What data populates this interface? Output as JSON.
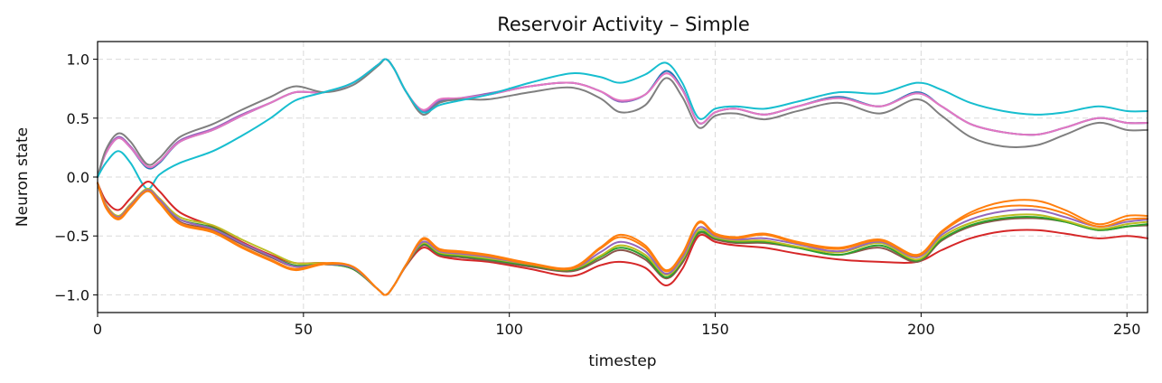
{
  "chart_data": {
    "type": "line",
    "title": "Reservoir Activity – Simple",
    "xlabel": "timestep",
    "ylabel": "Neuron state",
    "xlim": [
      0,
      255
    ],
    "ylim": [
      -1.15,
      1.15
    ],
    "x_ticks": [
      0,
      50,
      100,
      150,
      200,
      250
    ],
    "y_ticks": [
      -1.0,
      -0.5,
      0.0,
      0.5,
      1.0
    ],
    "x_tick_labels": [
      "0",
      "50",
      "100",
      "150",
      "200",
      "250"
    ],
    "y_tick_labels": [
      "−1.0",
      "−0.5",
      "0.0",
      "0.5",
      "1.0"
    ],
    "grid": true,
    "legend": "none",
    "x": [
      0,
      2,
      5,
      8,
      12,
      15,
      20,
      28,
      35,
      42,
      48,
      55,
      62,
      68,
      70,
      72,
      75,
      79,
      83,
      88,
      95,
      105,
      115,
      122,
      127,
      133,
      138,
      142,
      146,
      150,
      155,
      162,
      170,
      180,
      190,
      199,
      205,
      212,
      220,
      228,
      235,
      243,
      250,
      255
    ],
    "series": [
      {
        "color": "#1f77b4",
        "values": [
          0.0,
          0.2,
          0.33,
          0.25,
          0.08,
          0.12,
          0.3,
          0.4,
          0.52,
          0.63,
          0.72,
          0.72,
          0.8,
          0.95,
          1.0,
          0.92,
          0.72,
          0.55,
          0.64,
          0.66,
          0.7,
          0.77,
          0.8,
          0.73,
          0.64,
          0.7,
          0.9,
          0.75,
          0.46,
          0.55,
          0.58,
          0.53,
          0.6,
          0.68,
          0.6,
          0.72,
          0.6,
          0.45,
          0.38,
          0.36,
          0.42,
          0.5,
          0.46,
          0.46
        ]
      },
      {
        "color": "#9467bd",
        "values": [
          0.0,
          0.21,
          0.34,
          0.26,
          0.09,
          0.13,
          0.31,
          0.41,
          0.53,
          0.63,
          0.72,
          0.72,
          0.8,
          0.95,
          1.0,
          0.92,
          0.72,
          0.56,
          0.65,
          0.67,
          0.71,
          0.77,
          0.8,
          0.73,
          0.64,
          0.7,
          0.88,
          0.74,
          0.46,
          0.55,
          0.58,
          0.53,
          0.6,
          0.67,
          0.6,
          0.71,
          0.6,
          0.45,
          0.38,
          0.36,
          0.42,
          0.5,
          0.46,
          0.46
        ]
      },
      {
        "color": "#e377c2",
        "values": [
          0.0,
          0.2,
          0.33,
          0.25,
          0.09,
          0.13,
          0.3,
          0.4,
          0.52,
          0.63,
          0.72,
          0.72,
          0.8,
          0.95,
          1.0,
          0.92,
          0.72,
          0.57,
          0.66,
          0.67,
          0.7,
          0.77,
          0.8,
          0.73,
          0.65,
          0.7,
          0.88,
          0.74,
          0.46,
          0.55,
          0.58,
          0.53,
          0.6,
          0.67,
          0.6,
          0.71,
          0.6,
          0.45,
          0.38,
          0.36,
          0.42,
          0.5,
          0.46,
          0.46
        ]
      },
      {
        "color": "#7f7f7f",
        "values": [
          0.0,
          0.23,
          0.37,
          0.3,
          0.11,
          0.16,
          0.34,
          0.45,
          0.57,
          0.68,
          0.77,
          0.72,
          0.78,
          0.94,
          1.0,
          0.92,
          0.72,
          0.53,
          0.63,
          0.66,
          0.66,
          0.72,
          0.76,
          0.67,
          0.55,
          0.61,
          0.84,
          0.68,
          0.42,
          0.52,
          0.54,
          0.49,
          0.56,
          0.63,
          0.54,
          0.66,
          0.52,
          0.34,
          0.26,
          0.27,
          0.36,
          0.46,
          0.4,
          0.4
        ]
      },
      {
        "color": "#17becf",
        "values": [
          0.0,
          0.12,
          0.22,
          0.12,
          -0.1,
          0.02,
          0.12,
          0.22,
          0.35,
          0.5,
          0.65,
          0.72,
          0.8,
          0.95,
          1.0,
          0.92,
          0.72,
          0.55,
          0.61,
          0.65,
          0.7,
          0.8,
          0.88,
          0.85,
          0.8,
          0.87,
          0.97,
          0.8,
          0.5,
          0.58,
          0.6,
          0.58,
          0.64,
          0.72,
          0.71,
          0.8,
          0.74,
          0.63,
          0.56,
          0.53,
          0.55,
          0.6,
          0.56,
          0.56
        ]
      },
      {
        "color": "#d62728",
        "values": [
          -0.05,
          -0.2,
          -0.28,
          -0.18,
          -0.04,
          -0.12,
          -0.3,
          -0.42,
          -0.55,
          -0.66,
          -0.73,
          -0.73,
          -0.78,
          -0.95,
          -1.0,
          -0.92,
          -0.75,
          -0.6,
          -0.67,
          -0.7,
          -0.72,
          -0.78,
          -0.84,
          -0.75,
          -0.72,
          -0.77,
          -0.92,
          -0.78,
          -0.5,
          -0.55,
          -0.58,
          -0.6,
          -0.65,
          -0.7,
          -0.72,
          -0.72,
          -0.62,
          -0.52,
          -0.46,
          -0.45,
          -0.48,
          -0.52,
          -0.5,
          -0.52
        ]
      },
      {
        "color": "#8c564b",
        "values": [
          -0.05,
          -0.25,
          -0.35,
          -0.25,
          -0.12,
          -0.2,
          -0.38,
          -0.45,
          -0.57,
          -0.68,
          -0.76,
          -0.74,
          -0.78,
          -0.95,
          -1.0,
          -0.92,
          -0.75,
          -0.58,
          -0.66,
          -0.68,
          -0.71,
          -0.76,
          -0.8,
          -0.7,
          -0.62,
          -0.7,
          -0.86,
          -0.73,
          -0.48,
          -0.53,
          -0.56,
          -0.56,
          -0.6,
          -0.66,
          -0.6,
          -0.72,
          -0.54,
          -0.42,
          -0.36,
          -0.35,
          -0.38,
          -0.45,
          -0.42,
          -0.41
        ]
      },
      {
        "color": "#2ca02c",
        "values": [
          -0.05,
          -0.24,
          -0.34,
          -0.24,
          -0.11,
          -0.2,
          -0.36,
          -0.43,
          -0.56,
          -0.67,
          -0.75,
          -0.74,
          -0.78,
          -0.95,
          -1.0,
          -0.92,
          -0.74,
          -0.57,
          -0.65,
          -0.67,
          -0.7,
          -0.75,
          -0.79,
          -0.68,
          -0.6,
          -0.68,
          -0.85,
          -0.71,
          -0.47,
          -0.52,
          -0.55,
          -0.55,
          -0.6,
          -0.66,
          -0.58,
          -0.71,
          -0.53,
          -0.41,
          -0.35,
          -0.34,
          -0.38,
          -0.45,
          -0.42,
          -0.4
        ]
      },
      {
        "color": "#bcbd22",
        "values": [
          -0.05,
          -0.23,
          -0.33,
          -0.23,
          -0.1,
          -0.18,
          -0.34,
          -0.41,
          -0.53,
          -0.64,
          -0.73,
          -0.73,
          -0.77,
          -0.95,
          -1.0,
          -0.92,
          -0.74,
          -0.56,
          -0.64,
          -0.66,
          -0.69,
          -0.74,
          -0.78,
          -0.67,
          -0.58,
          -0.66,
          -0.83,
          -0.7,
          -0.45,
          -0.51,
          -0.54,
          -0.54,
          -0.59,
          -0.64,
          -0.56,
          -0.7,
          -0.51,
          -0.39,
          -0.33,
          -0.32,
          -0.37,
          -0.44,
          -0.4,
          -0.38
        ]
      },
      {
        "color": "#9467bd",
        "values": [
          -0.05,
          -0.24,
          -0.34,
          -0.24,
          -0.11,
          -0.19,
          -0.36,
          -0.44,
          -0.56,
          -0.67,
          -0.76,
          -0.74,
          -0.77,
          -0.95,
          -1.0,
          -0.92,
          -0.74,
          -0.55,
          -0.63,
          -0.65,
          -0.68,
          -0.74,
          -0.78,
          -0.64,
          -0.55,
          -0.63,
          -0.82,
          -0.68,
          -0.43,
          -0.5,
          -0.53,
          -0.52,
          -0.57,
          -0.63,
          -0.55,
          -0.68,
          -0.49,
          -0.36,
          -0.29,
          -0.28,
          -0.34,
          -0.42,
          -0.38,
          -0.36
        ]
      },
      {
        "color": "#ff7f0e",
        "values": [
          -0.05,
          -0.26,
          -0.36,
          -0.26,
          -0.12,
          -0.22,
          -0.4,
          -0.47,
          -0.6,
          -0.71,
          -0.79,
          -0.74,
          -0.76,
          -0.95,
          -1.0,
          -0.92,
          -0.74,
          -0.52,
          -0.61,
          -0.63,
          -0.66,
          -0.73,
          -0.77,
          -0.6,
          -0.49,
          -0.58,
          -0.79,
          -0.65,
          -0.38,
          -0.48,
          -0.51,
          -0.48,
          -0.55,
          -0.6,
          -0.53,
          -0.66,
          -0.46,
          -0.3,
          -0.21,
          -0.2,
          -0.28,
          -0.4,
          -0.33,
          -0.33
        ]
      },
      {
        "color": "#ff7f0e",
        "values": [
          -0.05,
          -0.25,
          -0.35,
          -0.25,
          -0.12,
          -0.21,
          -0.39,
          -0.46,
          -0.59,
          -0.7,
          -0.78,
          -0.73,
          -0.76,
          -0.95,
          -1.0,
          -0.92,
          -0.74,
          -0.53,
          -0.62,
          -0.64,
          -0.67,
          -0.74,
          -0.78,
          -0.61,
          -0.51,
          -0.6,
          -0.8,
          -0.66,
          -0.39,
          -0.49,
          -0.52,
          -0.49,
          -0.56,
          -0.61,
          -0.54,
          -0.67,
          -0.47,
          -0.32,
          -0.25,
          -0.25,
          -0.31,
          -0.42,
          -0.36,
          -0.35
        ]
      }
    ]
  }
}
